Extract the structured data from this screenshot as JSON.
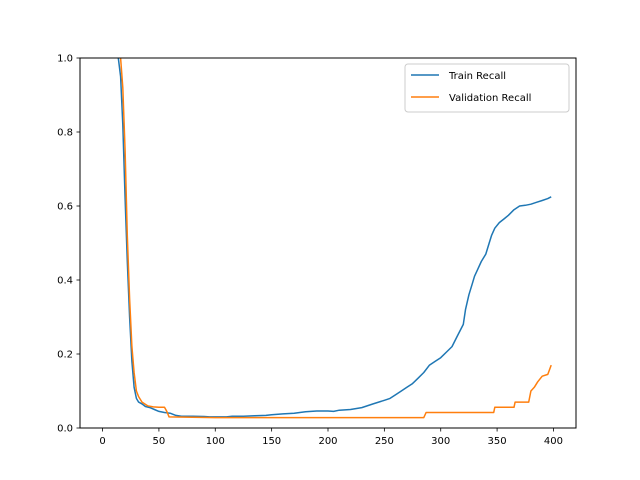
{
  "chart_data": {
    "type": "line",
    "title": "",
    "xlabel": "",
    "ylabel": "",
    "xlim": [
      -20,
      420
    ],
    "ylim": [
      0,
      1.0
    ],
    "x_ticks": [
      0,
      50,
      100,
      150,
      200,
      250,
      300,
      350,
      400
    ],
    "y_ticks": [
      0.0,
      0.2,
      0.4,
      0.6,
      0.8,
      1.0
    ],
    "x_tick_labels": [
      "0",
      "50",
      "100",
      "150",
      "200",
      "250",
      "300",
      "350",
      "400"
    ],
    "y_tick_labels": [
      "0.0",
      "0.2",
      "0.4",
      "0.6",
      "0.8",
      "1.0"
    ],
    "legend_position": "top-right",
    "grid": false,
    "series": [
      {
        "name": "Train Recall",
        "color": "#1f77b4",
        "points": [
          [
            14,
            1.0
          ],
          [
            16,
            0.95
          ],
          [
            18,
            0.82
          ],
          [
            20,
            0.62
          ],
          [
            22,
            0.45
          ],
          [
            24,
            0.3
          ],
          [
            26,
            0.18
          ],
          [
            28,
            0.11
          ],
          [
            30,
            0.08
          ],
          [
            32,
            0.07
          ],
          [
            35,
            0.065
          ],
          [
            38,
            0.058
          ],
          [
            42,
            0.055
          ],
          [
            46,
            0.05
          ],
          [
            50,
            0.045
          ],
          [
            55,
            0.042
          ],
          [
            60,
            0.04
          ],
          [
            65,
            0.034
          ],
          [
            70,
            0.032
          ],
          [
            80,
            0.032
          ],
          [
            90,
            0.031
          ],
          [
            95,
            0.03
          ],
          [
            100,
            0.03
          ],
          [
            110,
            0.03
          ],
          [
            115,
            0.032
          ],
          [
            125,
            0.032
          ],
          [
            135,
            0.033
          ],
          [
            145,
            0.034
          ],
          [
            150,
            0.036
          ],
          [
            160,
            0.038
          ],
          [
            170,
            0.04
          ],
          [
            180,
            0.044
          ],
          [
            190,
            0.046
          ],
          [
            200,
            0.046
          ],
          [
            205,
            0.045
          ],
          [
            210,
            0.048
          ],
          [
            220,
            0.05
          ],
          [
            230,
            0.055
          ],
          [
            240,
            0.065
          ],
          [
            250,
            0.075
          ],
          [
            255,
            0.08
          ],
          [
            260,
            0.09
          ],
          [
            265,
            0.1
          ],
          [
            270,
            0.11
          ],
          [
            275,
            0.12
          ],
          [
            280,
            0.135
          ],
          [
            285,
            0.15
          ],
          [
            290,
            0.17
          ],
          [
            295,
            0.18
          ],
          [
            300,
            0.19
          ],
          [
            305,
            0.205
          ],
          [
            310,
            0.22
          ],
          [
            315,
            0.25
          ],
          [
            320,
            0.28
          ],
          [
            322,
            0.32
          ],
          [
            325,
            0.36
          ],
          [
            328,
            0.39
          ],
          [
            330,
            0.41
          ],
          [
            333,
            0.43
          ],
          [
            336,
            0.45
          ],
          [
            340,
            0.47
          ],
          [
            343,
            0.5
          ],
          [
            345,
            0.52
          ],
          [
            348,
            0.54
          ],
          [
            352,
            0.555
          ],
          [
            356,
            0.565
          ],
          [
            360,
            0.575
          ],
          [
            365,
            0.59
          ],
          [
            370,
            0.6
          ],
          [
            375,
            0.602
          ],
          [
            380,
            0.605
          ],
          [
            385,
            0.61
          ],
          [
            390,
            0.615
          ],
          [
            395,
            0.62
          ],
          [
            398,
            0.625
          ]
        ]
      },
      {
        "name": "Validation Recall",
        "color": "#ff7f0e",
        "points": [
          [
            16,
            1.0
          ],
          [
            18,
            0.92
          ],
          [
            20,
            0.75
          ],
          [
            22,
            0.52
          ],
          [
            24,
            0.35
          ],
          [
            26,
            0.22
          ],
          [
            28,
            0.15
          ],
          [
            30,
            0.1
          ],
          [
            32,
            0.085
          ],
          [
            35,
            0.07
          ],
          [
            40,
            0.06
          ],
          [
            45,
            0.057
          ],
          [
            50,
            0.056
          ],
          [
            55,
            0.056
          ],
          [
            57,
            0.045
          ],
          [
            59,
            0.03
          ],
          [
            100,
            0.028
          ],
          [
            150,
            0.028
          ],
          [
            200,
            0.028
          ],
          [
            250,
            0.028
          ],
          [
            285,
            0.028
          ],
          [
            287,
            0.042
          ],
          [
            300,
            0.042
          ],
          [
            325,
            0.042
          ],
          [
            347,
            0.042
          ],
          [
            348,
            0.056
          ],
          [
            365,
            0.056
          ],
          [
            366,
            0.07
          ],
          [
            378,
            0.07
          ],
          [
            380,
            0.1
          ],
          [
            383,
            0.11
          ],
          [
            386,
            0.125
          ],
          [
            390,
            0.14
          ],
          [
            395,
            0.145
          ],
          [
            398,
            0.17
          ]
        ]
      }
    ]
  }
}
